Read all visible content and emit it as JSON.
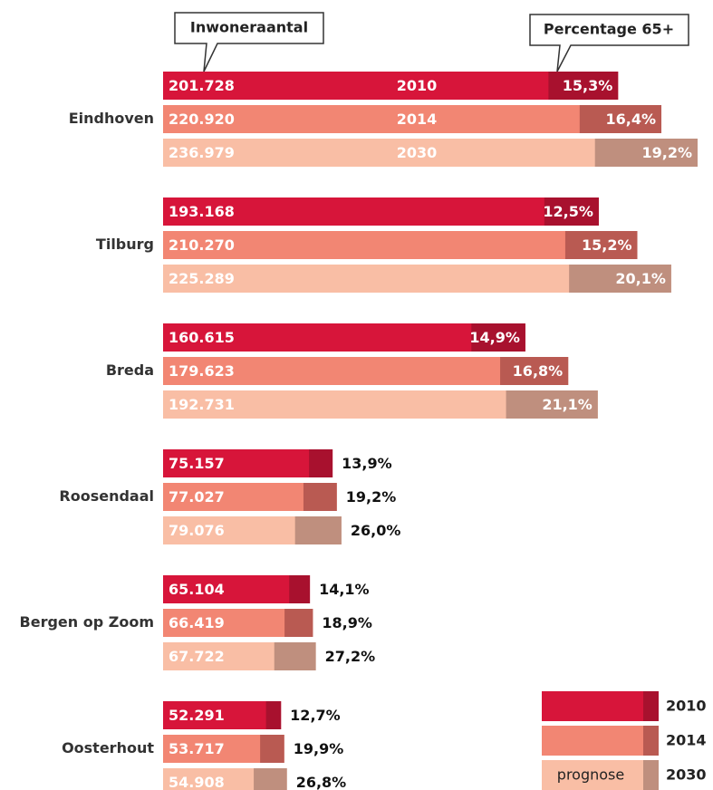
{
  "chart_data": {
    "type": "bar",
    "callouts": [
      "Inwoneraantal",
      "Percentage 65+"
    ],
    "legend_note": "prognose",
    "categories": [
      "Eindhoven",
      "Tilburg",
      "Breda",
      "Roosendaal",
      "Bergen op Zoom",
      "Oosterhout"
    ],
    "series": [
      {
        "name": "2010",
        "color": "#d7153a",
        "pct_color": "#a8112e",
        "values": [
          201728,
          193168,
          160615,
          75157,
          65104,
          52291
        ],
        "value_labels": [
          "201.728",
          "193.168",
          "160.615",
          "75.157",
          "65.104",
          "52.291"
        ],
        "pct_values": [
          15.3,
          12.5,
          14.9,
          13.9,
          14.1,
          12.7
        ],
        "pct_labels": [
          "15,3%",
          "12,5%",
          "14,9%",
          "13,9%",
          "14,1%",
          "12,7%"
        ]
      },
      {
        "name": "2014",
        "color": "#f28673",
        "pct_color": "#b95a52",
        "values": [
          220920,
          210270,
          179623,
          77027,
          66419,
          53717
        ],
        "value_labels": [
          "220.920",
          "210.270",
          "179.623",
          "77.027",
          "66.419",
          "53.717"
        ],
        "pct_values": [
          16.4,
          15.2,
          16.8,
          19.2,
          18.9,
          19.9
        ],
        "pct_labels": [
          "16,4%",
          "15,2%",
          "16,8%",
          "19,2%",
          "18,9%",
          "19,9%"
        ]
      },
      {
        "name": "2030",
        "color": "#f9bea5",
        "pct_color": "#bf8f7e",
        "values": [
          236979,
          225289,
          192731,
          79076,
          67722,
          54908
        ],
        "value_labels": [
          "236.979",
          "225.289",
          "192.731",
          "79.076",
          "67.722",
          "54.908"
        ],
        "pct_values": [
          19.2,
          20.1,
          21.1,
          26.0,
          27.2,
          26.8
        ],
        "pct_labels": [
          "19,2%",
          "20,1%",
          "21,1%",
          "26,0%",
          "27,2%",
          "26,8%"
        ]
      }
    ]
  }
}
